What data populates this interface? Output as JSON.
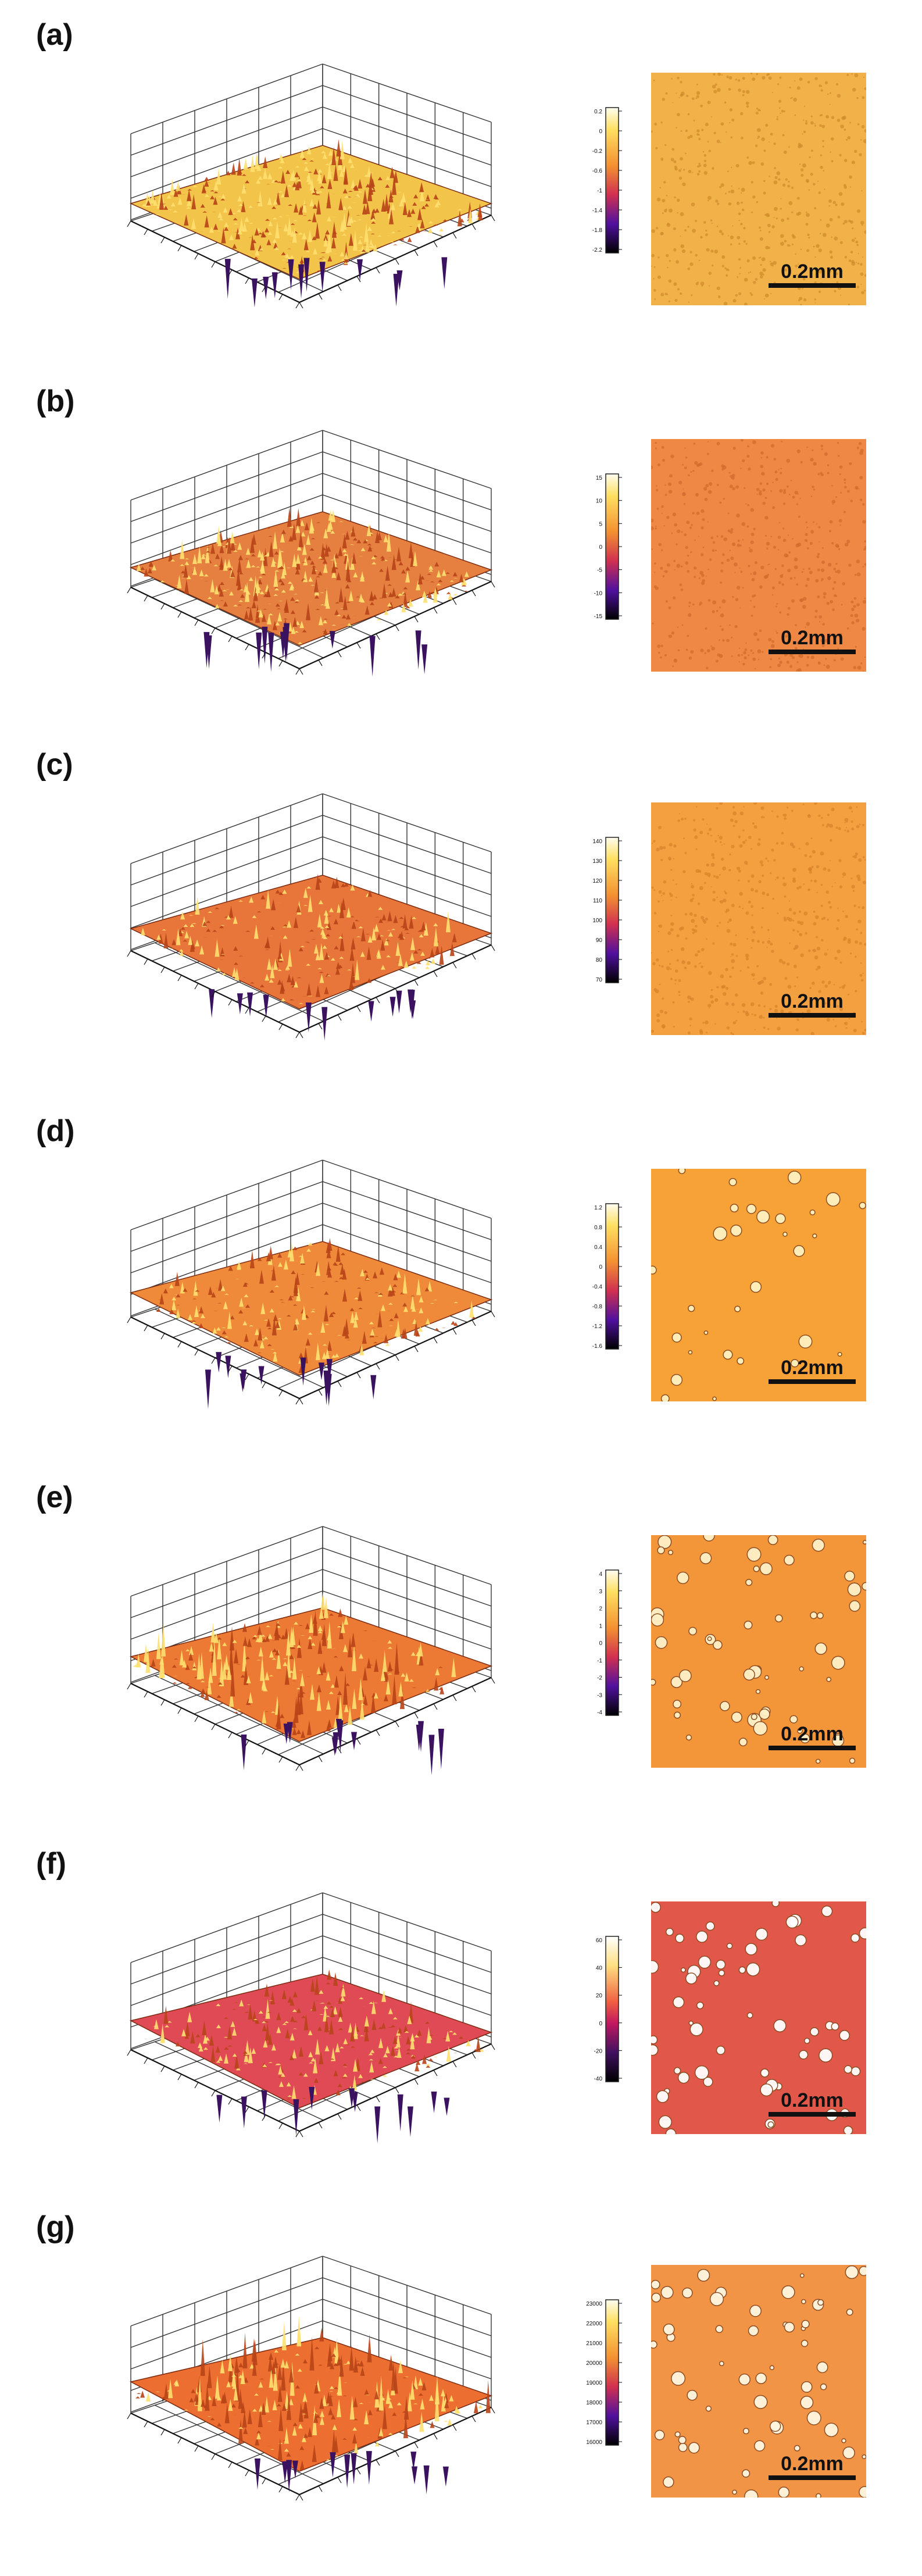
{
  "scale_bar_text": "0.2mm",
  "panels": [
    {
      "label": "(a)",
      "palette": "yellow",
      "tint": "#f3c44a",
      "micro_bg": "#f2b24a",
      "micro_dot": "#cf8a2a",
      "cbar_ticks": [
        "0.2",
        "0",
        "-0.2",
        "-0.6",
        "-1",
        "-1.4",
        "-1.8",
        "-2.2"
      ]
    },
    {
      "label": "(b)",
      "palette": "orange",
      "tint": "#e68040",
      "micro_bg": "#ee8844",
      "micro_dot": "#d06a2c",
      "cbar_ticks": [
        "15",
        "10",
        "5",
        "0",
        "-5",
        "-10",
        "-15"
      ]
    },
    {
      "label": "(c)",
      "palette": "orange",
      "tint": "#e8763a",
      "micro_bg": "#f2a040",
      "micro_dot": "#d9822a",
      "cbar_ticks": [
        "140",
        "130",
        "120",
        "110",
        "100",
        "90",
        "80",
        "70"
      ]
    },
    {
      "label": "(d)",
      "palette": "orange",
      "tint": "#ee8a3a",
      "micro_bg": "#f6a236",
      "micro_dot": "#fff2c0",
      "cbar_ticks": [
        "1.2",
        "0.8",
        "0.4",
        "0",
        "-0.4",
        "-0.8",
        "-1.2",
        "-1.6"
      ]
    },
    {
      "label": "(e)",
      "palette": "orange",
      "tint": "#ec7a34",
      "micro_bg": "#f3963a",
      "micro_dot": "#fff0c8",
      "cbar_ticks": [
        "4",
        "3",
        "2",
        "1",
        "0",
        "-1",
        "-2",
        "-3",
        "-4"
      ]
    },
    {
      "label": "(f)",
      "palette": "red",
      "tint": "#e04a55",
      "micro_bg": "#e1584a",
      "micro_dot": "#ffffff",
      "cbar_ticks": [
        "60",
        "40",
        "20",
        "0",
        "-20",
        "-40"
      ]
    },
    {
      "label": "(g)",
      "palette": "orange",
      "tint": "#ec6e30",
      "micro_bg": "#f29446",
      "micro_dot": "#fff6e0",
      "cbar_ticks": [
        "23000",
        "22000",
        "21000",
        "20000",
        "19000",
        "18000",
        "17000",
        "16000"
      ]
    }
  ]
}
